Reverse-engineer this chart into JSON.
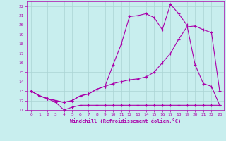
{
  "background_color": "#c8eeee",
  "grid_color": "#aad4d4",
  "line_color": "#aa00aa",
  "xlabel": "Windchill (Refroidissement éolien,°C)",
  "xlim": [
    -0.5,
    23.5
  ],
  "ylim": [
    11,
    22.5
  ],
  "yticks": [
    11,
    12,
    13,
    14,
    15,
    16,
    17,
    18,
    19,
    20,
    21,
    22
  ],
  "xticks": [
    0,
    1,
    2,
    3,
    4,
    5,
    6,
    7,
    8,
    9,
    10,
    11,
    12,
    13,
    14,
    15,
    16,
    17,
    18,
    19,
    20,
    21,
    22,
    23
  ],
  "line1_x": [
    0,
    1,
    2,
    3,
    4,
    5,
    6,
    7,
    8,
    9,
    10,
    11,
    12,
    13,
    14,
    15,
    16,
    17,
    18,
    19,
    20,
    21,
    22,
    23
  ],
  "line1_y": [
    13.0,
    12.5,
    12.2,
    11.8,
    11.0,
    11.3,
    11.5,
    11.5,
    11.5,
    11.5,
    11.5,
    11.5,
    11.5,
    11.5,
    11.5,
    11.5,
    11.5,
    11.5,
    11.5,
    11.5,
    11.5,
    11.5,
    11.5,
    11.5
  ],
  "line2_x": [
    0,
    1,
    2,
    3,
    4,
    5,
    6,
    7,
    8,
    9,
    10,
    11,
    12,
    13,
    14,
    15,
    16,
    17,
    18,
    19,
    20,
    21,
    22,
    23
  ],
  "line2_y": [
    13.0,
    12.5,
    12.2,
    12.0,
    11.8,
    12.0,
    12.5,
    12.7,
    13.2,
    13.5,
    13.8,
    14.0,
    14.2,
    14.3,
    14.5,
    15.0,
    16.0,
    17.0,
    18.5,
    19.8,
    19.9,
    19.5,
    19.2,
    13.0
  ],
  "line3_x": [
    0,
    1,
    2,
    3,
    4,
    5,
    6,
    7,
    8,
    9,
    10,
    11,
    12,
    13,
    14,
    15,
    16,
    17,
    18,
    19,
    20,
    21,
    22,
    23
  ],
  "line3_y": [
    13.0,
    12.5,
    12.2,
    12.0,
    11.8,
    12.0,
    12.5,
    12.7,
    13.2,
    13.5,
    15.8,
    18.0,
    20.9,
    21.0,
    21.2,
    20.8,
    19.5,
    22.2,
    21.2,
    20.0,
    15.8,
    13.8,
    13.5,
    11.5
  ]
}
